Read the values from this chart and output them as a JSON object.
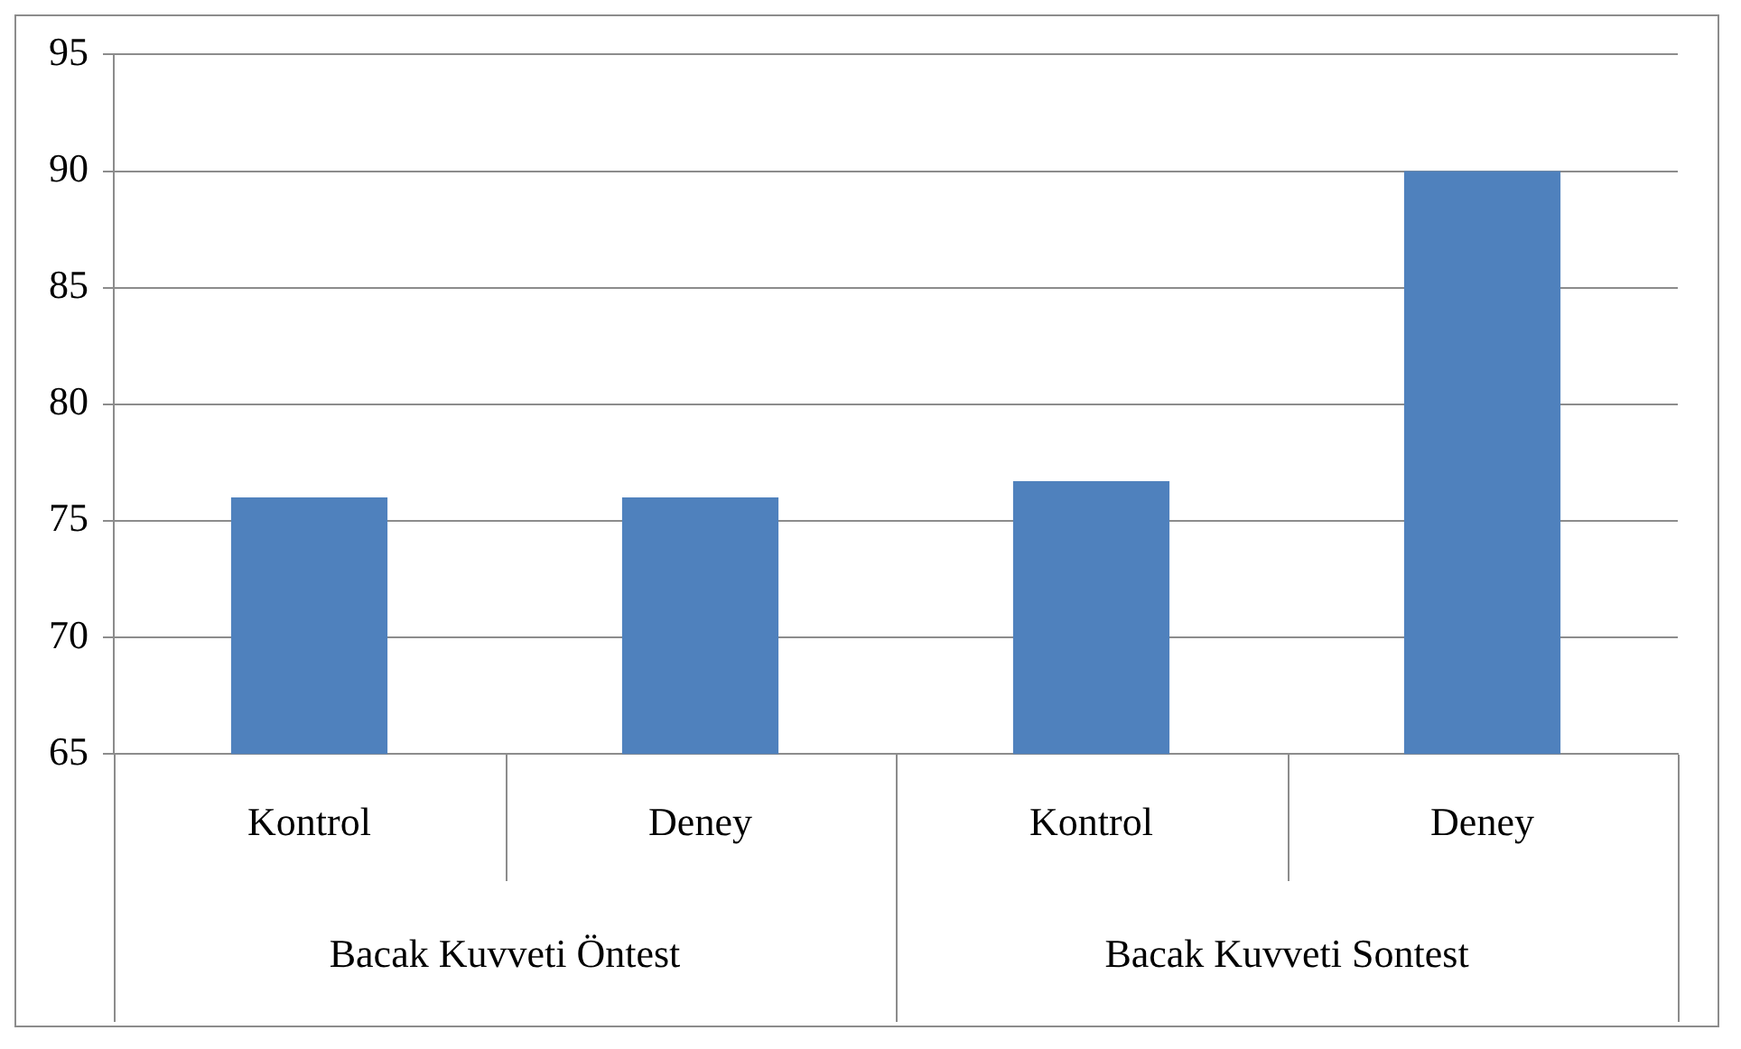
{
  "chart_data": {
    "type": "bar",
    "categories": [
      "Kontrol",
      "Deney",
      "Kontrol",
      "Deney"
    ],
    "values": [
      76,
      76,
      76.7,
      90
    ],
    "color": "#4f81bd",
    "annotations": [
      "Bacak Kuvveti Öntest",
      "Bacak Kuvveti Sontest"
    ],
    "ylim": [
      65,
      95
    ],
    "yticks": [
      65,
      70,
      75,
      80,
      85,
      90,
      95
    ],
    "grid": "y",
    "legend": false
  }
}
